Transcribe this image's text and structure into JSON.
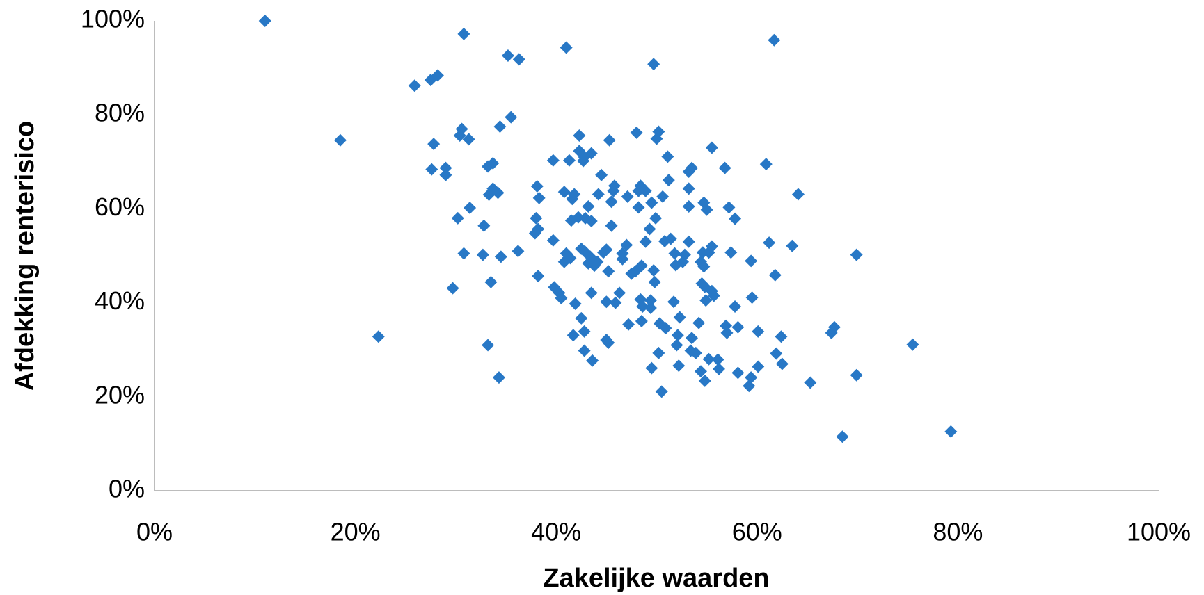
{
  "chart_data": {
    "type": "scatter",
    "xlabel": "Zakelijke waarden",
    "ylabel": "Afdekking renterisico",
    "color": "#2878c6",
    "x": [
      11,
      18.5,
      22.3,
      25.9,
      27.5,
      28.2,
      27.8,
      27.6,
      29,
      29,
      30.8,
      30.6,
      30.4,
      31.3,
      31.4,
      30.2,
      30.8,
      29.7,
      32.8,
      32.7,
      33.2,
      33.7,
      33.3,
      33.7,
      34.2,
      33.5,
      33.2,
      34.3,
      34.5,
      34.4,
      35.5,
      35.2,
      36.3,
      36.2,
      38.1,
      38.3,
      38,
      38.2,
      37.9,
      38.2,
      39.7,
      39.7,
      39.8,
      40.3,
      40.5,
      41,
      40.8,
      41.3,
      41,
      40.8,
      41.4,
      41.8,
      41.6,
      41.5,
      41.9,
      41.7,
      42.3,
      42.3,
      42.8,
      42.7,
      43.5,
      42.2,
      42.9,
      43.2,
      43.5,
      42.5,
      42.9,
      43.4,
      43.6,
      43.2,
      44.1,
      43.8,
      42.5,
      42.8,
      42.8,
      43.5,
      43.6,
      44.2,
      44.5,
      44.7,
      45,
      45.2,
      45,
      45,
      45.2,
      45.3,
      45.5,
      45.5,
      45.7,
      45.8,
      45.9,
      46.3,
      46.6,
      46.6,
      47,
      47.1,
      47.2,
      47.5,
      47.9,
      48,
      48.2,
      48.2,
      48.4,
      48.9,
      48.5,
      48.4,
      48.6,
      48.5,
      48.9,
      49.4,
      49.4,
      49.3,
      49.5,
      49.7,
      49.7,
      49.8,
      49.5,
      49.9,
      50,
      50.2,
      50.3,
      50.2,
      50.5,
      50.6,
      50.8,
      50.9,
      51.1,
      51.2,
      51.4,
      51.8,
      51.7,
      51.9,
      52.1,
      52,
      52.3,
      52.2,
      52.6,
      52.8,
      53.2,
      53.5,
      53.2,
      53.2,
      53.2,
      53.5,
      53.4,
      53.9,
      54.2,
      54.4,
      54.4,
      54.7,
      54.6,
      54.7,
      54.5,
      54.8,
      54.8,
      55,
      54.9,
      55.2,
      55.2,
      55.5,
      55.5,
      55.5,
      55.7,
      56.1,
      56.2,
      56.8,
      56.9,
      57,
      57.2,
      57.4,
      57.8,
      57.8,
      58.1,
      58.1,
      59.2,
      59.4,
      59.4,
      59.5,
      60.1,
      60.1,
      60.9,
      61.2,
      61.7,
      61.8,
      61.9,
      62.4,
      62.5,
      63.5,
      64.1,
      65.3,
      67.4,
      67.7,
      68.5,
      69.9,
      69.9,
      75.5,
      79.3
    ],
    "values": [
      100,
      74.6,
      32.8,
      86.2,
      87.4,
      88.4,
      73.8,
      68.4,
      68.7,
      67.2,
      97.2,
      77,
      75.6,
      74.8,
      60.2,
      58,
      50.5,
      43.1,
      56.4,
      50.2,
      69,
      69.7,
      63,
      64.3,
      63.4,
      44.4,
      31,
      24.1,
      49.8,
      77.5,
      79.5,
      92.6,
      91.8,
      51,
      64.8,
      62.3,
      58,
      55.7,
      54.8,
      45.7,
      70.3,
      53.3,
      43.3,
      42.1,
      41,
      94.3,
      63.6,
      70.3,
      50.5,
      48.7,
      49.5,
      63.1,
      62.1,
      57.5,
      39.8,
      33.1,
      75.6,
      72.3,
      71,
      70.2,
      71.8,
      58.2,
      58,
      60.5,
      57.4,
      51.5,
      50.8,
      49.8,
      49.2,
      48.4,
      48.7,
      47.9,
      36.7,
      33.9,
      29.8,
      42.1,
      27.7,
      63.1,
      67.2,
      50.7,
      51.3,
      46.7,
      40.2,
      32.1,
      31.5,
      74.6,
      56.4,
      61.5,
      63.8,
      64.9,
      40,
      42.1,
      49.3,
      50.5,
      52.3,
      62.6,
      35.4,
      46.2,
      46.7,
      76.2,
      60.3,
      63.8,
      64.9,
      63.8,
      47.9,
      40.7,
      39.2,
      36.1,
      53,
      40.5,
      38.9,
      55.7,
      61.3,
      90.8,
      46.9,
      44.4,
      26.1,
      58,
      74.9,
      76.4,
      35.6,
      29.3,
      21.1,
      62.6,
      53.1,
      34.6,
      71.1,
      66.1,
      53.6,
      50.5,
      40.2,
      48,
      33.1,
      31,
      36.9,
      26.6,
      48.7,
      50.2,
      67.9,
      68.7,
      64.3,
      60.5,
      53,
      32.5,
      29.8,
      29.3,
      35.7,
      48.7,
      25.4,
      61.3,
      50.7,
      47.7,
      44.1,
      43.4,
      23.4,
      59.8,
      40.5,
      28,
      50.7,
      73,
      52,
      42.5,
      41.5,
      27.9,
      25.9,
      68.7,
      35.1,
      33.6,
      60.3,
      50.7,
      57.9,
      39.2,
      34.8,
      25.1,
      22.3,
      24.1,
      48.9,
      41.1,
      33.9,
      26.4,
      69.5,
      52.8,
      95.9,
      45.9,
      29.2,
      32.8,
      27,
      52.1,
      63.1,
      23,
      33.6,
      34.8,
      11.5,
      50.2,
      24.6,
      31.1,
      12.6
    ],
    "xlim": [
      0,
      100
    ],
    "ylim": [
      0,
      100
    ],
    "xticks": [
      {
        "value": 0,
        "label": "0%"
      },
      {
        "value": 20,
        "label": "20%"
      },
      {
        "value": 40,
        "label": "40%"
      },
      {
        "value": 60,
        "label": "60%"
      },
      {
        "value": 80,
        "label": "80%"
      },
      {
        "value": 100,
        "label": "100%"
      }
    ],
    "yticks": [
      {
        "value": 0,
        "label": "0%"
      },
      {
        "value": 20,
        "label": "20%"
      },
      {
        "value": 40,
        "label": "40%"
      },
      {
        "value": 60,
        "label": "60%"
      },
      {
        "value": 80,
        "label": "80%"
      },
      {
        "value": 100,
        "label": "100%"
      }
    ],
    "grid": false
  }
}
